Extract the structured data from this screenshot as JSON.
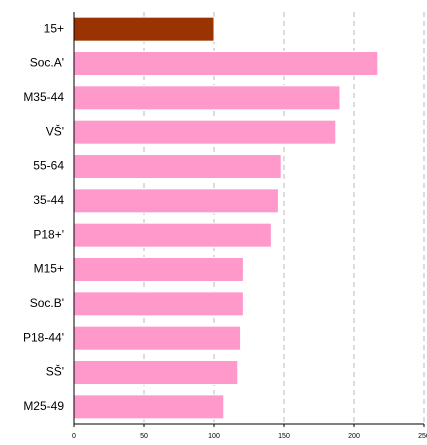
{
  "chart_data": {
    "type": "bar",
    "orientation": "horizontal",
    "categories": [
      "15+",
      "Soc.A'",
      "M35-44",
      "VŠ'",
      "55-64",
      "35-44",
      "P18+'",
      "M15+",
      "Soc.B'",
      "P18-44'",
      "SŠ'",
      "M25-49"
    ],
    "values": [
      100,
      217,
      190,
      187,
      148,
      146,
      141,
      121,
      121,
      119,
      117,
      107
    ],
    "colors": [
      "#993300",
      "#ff99cc",
      "#ff99cc",
      "#ff99cc",
      "#ff99cc",
      "#ff99cc",
      "#ff99cc",
      "#ff99cc",
      "#ff99cc",
      "#ff99cc",
      "#ff99cc",
      "#ff99cc"
    ],
    "xlim": [
      0,
      250
    ],
    "xticks": [
      0,
      50,
      100,
      150,
      200,
      250
    ],
    "grid": true
  }
}
